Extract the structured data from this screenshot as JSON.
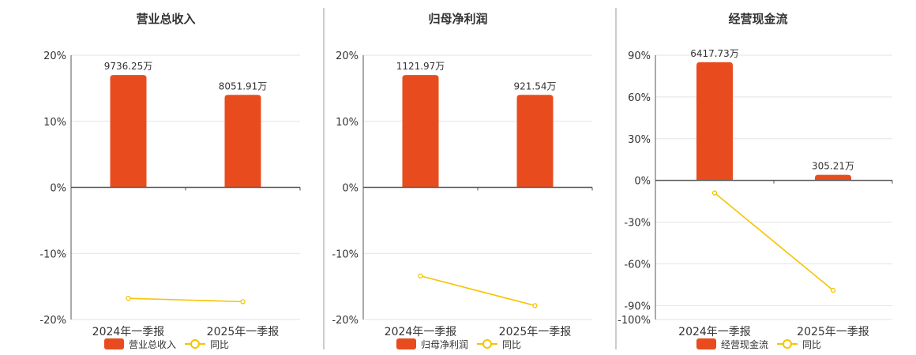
{
  "chart_data": [
    {
      "type": "bar",
      "title": "营业总收入",
      "categories": [
        "2024年一季报",
        "2025年一季报"
      ],
      "bar_values_wan": [
        9736.25,
        8051.91
      ],
      "bar_labels": [
        "9736.25万",
        "8051.91万"
      ],
      "yoy_percent": [
        17,
        14
      ],
      "line_percent": [
        -16.8,
        -17.3
      ],
      "ylim": [
        -20,
        20
      ],
      "yticks": [
        "20%",
        "10%",
        "0%",
        "-10%",
        "-20%"
      ],
      "ytick_values": [
        20,
        10,
        0,
        -10,
        -20
      ],
      "legend": {
        "bar": "营业总收入",
        "line": "同比"
      }
    },
    {
      "type": "bar",
      "title": "归母净利润",
      "categories": [
        "2024年一季报",
        "2025年一季报"
      ],
      "bar_values_wan": [
        1121.97,
        921.54
      ],
      "bar_labels": [
        "1121.97万",
        "921.54万"
      ],
      "yoy_percent": [
        17,
        14
      ],
      "line_percent": [
        -13.4,
        -17.9
      ],
      "ylim": [
        -20,
        20
      ],
      "yticks": [
        "20%",
        "10%",
        "0%",
        "-10%",
        "-20%"
      ],
      "ytick_values": [
        20,
        10,
        0,
        -10,
        -20
      ],
      "legend": {
        "bar": "归母净利润",
        "line": "同比"
      }
    },
    {
      "type": "bar",
      "title": "经营现金流",
      "categories": [
        "2024年一季报",
        "2025年一季报"
      ],
      "bar_values_wan": [
        6417.73,
        305.21
      ],
      "bar_labels": [
        "6417.73万",
        "305.21万"
      ],
      "yoy_percent": [
        85,
        4
      ],
      "line_percent": [
        -9,
        -79
      ],
      "ylim": [
        -100,
        90
      ],
      "yticks": [
        "90%",
        "60%",
        "30%",
        "0%",
        "-30%",
        "-60%",
        "-90%",
        "-100%"
      ],
      "ytick_values": [
        90,
        60,
        30,
        0,
        -30,
        -60,
        -90,
        -100
      ],
      "legend": {
        "bar": "经营现金流",
        "line": "同比"
      }
    }
  ],
  "colors": {
    "bar": "#e84c1e",
    "line": "#f5c400",
    "grid": "#e3e3e8",
    "axis": "#555555",
    "divider": "#999999"
  }
}
